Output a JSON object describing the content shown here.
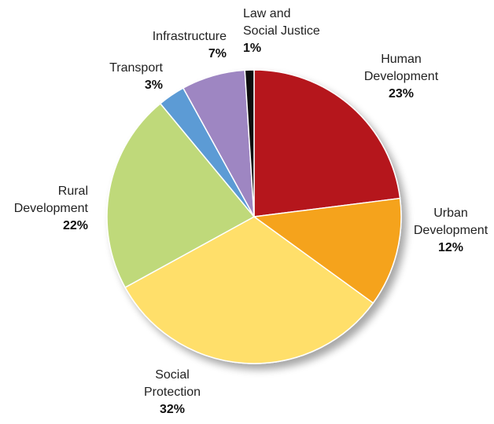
{
  "chart_data": {
    "type": "pie",
    "start_angle_deg": 0,
    "direction": "clockwise",
    "slices": [
      {
        "label": [
          "Human",
          "Development"
        ],
        "value": 23,
        "display": "23%",
        "color": "#b5121b"
      },
      {
        "label": [
          "Urban",
          "Development"
        ],
        "value": 12,
        "display": "12%",
        "color": "#f5a31a"
      },
      {
        "label": [
          "Social",
          "Protection"
        ],
        "value": 32,
        "display": "32%",
        "color": "#ffdf6b"
      },
      {
        "label": [
          "Rural",
          "Development"
        ],
        "value": 22,
        "display": "22%",
        "color": "#bfd97a"
      },
      {
        "label": [
          "Transport"
        ],
        "value": 3,
        "display": "3%",
        "color": "#5b9bd5"
      },
      {
        "label": [
          "Infrastructure"
        ],
        "value": 7,
        "display": "7%",
        "color": "#9e86c2"
      },
      {
        "label": [
          "Law and",
          "Social Justice"
        ],
        "value": 1,
        "display": "1%",
        "color": "#111111"
      }
    ]
  }
}
